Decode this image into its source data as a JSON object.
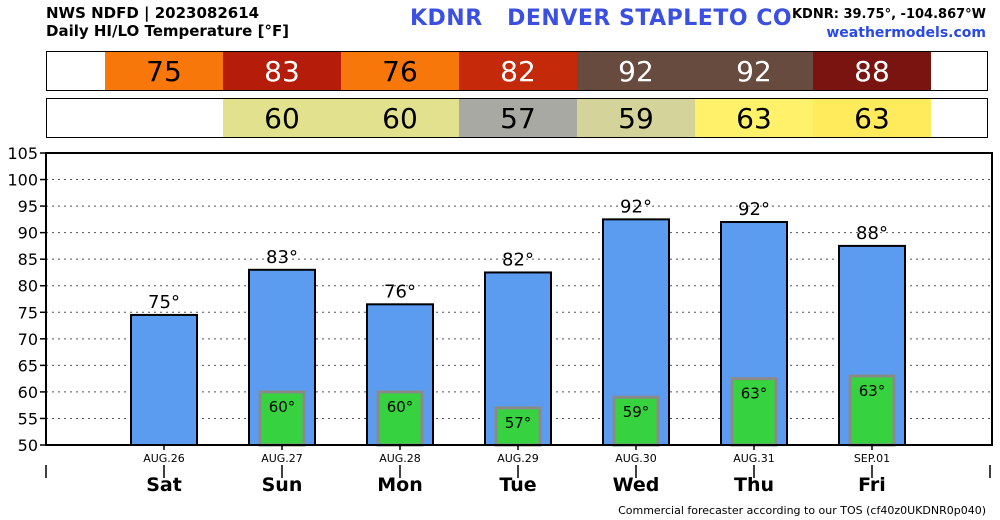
{
  "header": {
    "line1": "NWS NDFD | 2023082614",
    "line2": "Daily HI/LO Temperature [°F]",
    "title": "KDNR   DENVER STAPLETO CO",
    "coords": "KDNR: 39.75°, -104.867°W",
    "site": "weathermodels.com"
  },
  "footer": "Commercial forecaster according to our TOS (cf40z0UKDNR0p040)",
  "hi_strip": [
    {
      "text": "75",
      "bg": "#f7770a",
      "fg": "#000000"
    },
    {
      "text": "83",
      "bg": "#b51c0a",
      "fg": "#ffffff"
    },
    {
      "text": "76",
      "bg": "#f7770a",
      "fg": "#000000"
    },
    {
      "text": "82",
      "bg": "#c42a0a",
      "fg": "#ffffff"
    },
    {
      "text": "92",
      "bg": "#674b3e",
      "fg": "#ffffff"
    },
    {
      "text": "92",
      "bg": "#674b3e",
      "fg": "#ffffff"
    },
    {
      "text": "88",
      "bg": "#791411",
      "fg": "#ffffff"
    }
  ],
  "lo_strip": [
    {
      "text": "",
      "bg": "#ffffff",
      "fg": "#000000"
    },
    {
      "text": "60",
      "bg": "#e1e18e",
      "fg": "#000000"
    },
    {
      "text": "60",
      "bg": "#e1e18e",
      "fg": "#000000"
    },
    {
      "text": "57",
      "bg": "#a9a9a3",
      "fg": "#000000"
    },
    {
      "text": "59",
      "bg": "#d3d39a",
      "fg": "#000000"
    },
    {
      "text": "63",
      "bg": "#fff16a",
      "fg": "#000000"
    },
    {
      "text": "63",
      "bg": "#ffeb5b",
      "fg": "#000000"
    }
  ],
  "chart_data": {
    "type": "bar",
    "categories": [
      "Sat",
      "Sun",
      "Mon",
      "Tue",
      "Wed",
      "Thu",
      "Fri"
    ],
    "dates": [
      "AUG.26",
      "AUG.27",
      "AUG.28",
      "AUG.29",
      "AUG.30",
      "AUG.31",
      "SEP.01"
    ],
    "series": [
      {
        "values": [
          74.5,
          83,
          76.5,
          82.5,
          92.5,
          92,
          87.5
        ],
        "labels": [
          "75°",
          "83°",
          "76°",
          "82°",
          "92°",
          "92°",
          "88°"
        ],
        "color": "#5b9cf0"
      },
      {
        "values": [
          null,
          60,
          60,
          57,
          59,
          62.5,
          63
        ],
        "labels": [
          "",
          "60°",
          "60°",
          "57°",
          "59°",
          "63°",
          "63°"
        ],
        "color": "#36d23f"
      }
    ],
    "ylim": [
      50,
      105
    ],
    "yticks": [
      50,
      55,
      60,
      65,
      70,
      75,
      80,
      85,
      90,
      95,
      100,
      105
    ],
    "grid": true
  }
}
